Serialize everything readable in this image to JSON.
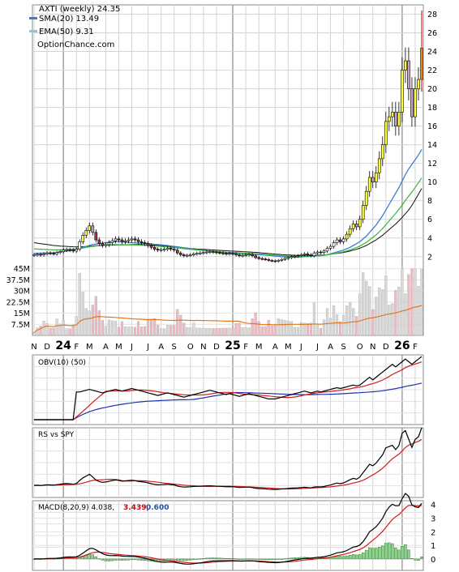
{
  "legend": {
    "title": "AXTI (weekly) 24.35",
    "sma_label": "SMA(20) 13.49",
    "ema_label": "EMA(50) 9.31",
    "source": "OptionChance.com",
    "sma_color": "#3a7fd0",
    "ema_color": "#7ec8e8"
  },
  "x_axis": {
    "ticks": [
      {
        "label": "N",
        "i": 0,
        "bold": false
      },
      {
        "label": "D",
        "i": 4,
        "bold": false
      },
      {
        "label": "24",
        "i": 9,
        "bold": true
      },
      {
        "label": "F",
        "i": 13,
        "bold": false
      },
      {
        "label": "M",
        "i": 17,
        "bold": false
      },
      {
        "label": "A",
        "i": 22,
        "bold": false
      },
      {
        "label": "M",
        "i": 26,
        "bold": false
      },
      {
        "label": "J",
        "i": 30,
        "bold": false
      },
      {
        "label": "J",
        "i": 35,
        "bold": false
      },
      {
        "label": "A",
        "i": 39,
        "bold": false
      },
      {
        "label": "S",
        "i": 43,
        "bold": false
      },
      {
        "label": "O",
        "i": 48,
        "bold": false
      },
      {
        "label": "N",
        "i": 52,
        "bold": false
      },
      {
        "label": "D",
        "i": 56,
        "bold": false
      },
      {
        "label": "25",
        "i": 61,
        "bold": true
      },
      {
        "label": "F",
        "i": 65,
        "bold": false
      },
      {
        "label": "M",
        "i": 69,
        "bold": false
      },
      {
        "label": "A",
        "i": 74,
        "bold": false
      },
      {
        "label": "M",
        "i": 78,
        "bold": false
      },
      {
        "label": "J",
        "i": 82,
        "bold": false
      },
      {
        "label": "J",
        "i": 87,
        "bold": false
      },
      {
        "label": "A",
        "i": 91,
        "bold": false
      },
      {
        "label": "S",
        "i": 95,
        "bold": false
      },
      {
        "label": "O",
        "i": 100,
        "bold": false
      },
      {
        "label": "N",
        "i": 104,
        "bold": false
      },
      {
        "label": "D",
        "i": 108,
        "bold": false
      },
      {
        "label": "26",
        "i": 113,
        "bold": true
      },
      {
        "label": "F",
        "i": 117,
        "bold": false
      }
    ]
  },
  "panels": {
    "obv_label": "OBV(10) (50)",
    "rs_label": "RS vs SPY",
    "macd_label": "MACD(8,20,9) 4.038,",
    "macd_signal": "3.439,",
    "macd_hist": "0.600",
    "macd_signal_color": "#cc0000",
    "macd_hist_color": "#1f4fa8"
  },
  "chart_data": [
    {
      "type": "candlestick",
      "title": "AXTI (weekly) 24.35",
      "ylim": [
        1.2,
        29
      ],
      "yticks": [
        2,
        4,
        6,
        8,
        10,
        12,
        14,
        16,
        18,
        20,
        22,
        24,
        26,
        28
      ],
      "grid": true,
      "legend_position": "top-left",
      "weeks": 120,
      "close": [
        2.2,
        2.25,
        2.18,
        2.3,
        2.4,
        2.35,
        2.3,
        2.45,
        2.55,
        2.7,
        2.75,
        2.7,
        2.6,
        2.8,
        3.6,
        4.3,
        4.8,
        5.3,
        4.6,
        3.8,
        3.4,
        3.2,
        3.3,
        3.5,
        3.7,
        3.9,
        3.8,
        3.6,
        3.7,
        3.8,
        3.9,
        3.8,
        3.6,
        3.5,
        3.4,
        3.2,
        3.0,
        2.8,
        2.7,
        2.75,
        2.8,
        2.9,
        2.8,
        2.7,
        2.4,
        2.2,
        2.1,
        2.15,
        2.2,
        2.3,
        2.35,
        2.4,
        2.45,
        2.5,
        2.55,
        2.5,
        2.45,
        2.4,
        2.35,
        2.3,
        2.35,
        2.3,
        2.2,
        2.1,
        2.15,
        2.2,
        2.25,
        2.1,
        1.9,
        1.8,
        1.75,
        1.7,
        1.6,
        1.55,
        1.5,
        1.6,
        1.7,
        1.8,
        1.9,
        2.0,
        2.05,
        2.1,
        2.2,
        2.3,
        2.2,
        2.1,
        2.4,
        2.5,
        2.45,
        2.6,
        2.9,
        3.1,
        3.5,
        3.8,
        3.6,
        3.9,
        4.4,
        5.0,
        5.5,
        5.2,
        6.0,
        7.5,
        9.0,
        10.5,
        10.0,
        11.0,
        12.5,
        14.0,
        16.5,
        17.0,
        17.5,
        16.0,
        17.5,
        22.0,
        23.0,
        20.0,
        17.0,
        20.0,
        21.0,
        24.35
      ],
      "sma20": [
        2.35,
        2.36,
        2.37,
        2.38,
        2.39,
        2.4,
        2.42,
        2.45,
        2.5,
        2.55,
        2.6,
        2.66,
        2.72,
        2.8,
        2.9,
        3.0,
        3.1,
        3.2,
        3.3,
        3.35,
        3.4,
        3.45,
        3.5,
        3.55,
        3.6,
        3.62,
        3.6,
        3.58,
        3.55,
        3.52,
        3.5,
        3.48,
        3.46,
        3.44,
        3.42,
        3.4,
        3.37,
        3.33,
        3.3,
        3.27,
        3.23,
        3.2,
        3.15,
        3.1,
        3.05,
        3.0,
        2.95,
        2.9,
        2.85,
        2.8,
        2.76,
        2.72,
        2.68,
        2.64,
        2.6,
        2.56,
        2.52,
        2.48,
        2.45,
        2.42,
        2.4,
        2.38,
        2.36,
        2.34,
        2.32,
        2.3,
        2.28,
        2.26,
        2.24,
        2.22,
        2.2,
        2.17,
        2.14,
        2.1,
        2.06,
        2.03,
        2.0,
        1.98,
        1.96,
        1.95,
        1.95,
        1.96,
        1.98,
        2.0,
        2.02,
        2.04,
        2.06,
        2.08,
        2.1,
        2.15,
        2.2,
        2.3,
        2.4,
        2.5,
        2.6,
        2.7,
        2.85,
        3.0,
        3.2,
        3.4,
        3.6,
        3.9,
        4.2,
        4.6,
        5.0,
        5.4,
        5.9,
        6.4,
        7.0,
        7.6,
        8.2,
        8.8,
        9.4,
        10.1,
        10.8,
        11.4,
        11.9,
        12.4,
        12.9,
        13.49
      ],
      "ema50": [
        3.5,
        3.45,
        3.4,
        3.35,
        3.3,
        3.25,
        3.2,
        3.17,
        3.14,
        3.12,
        3.1,
        3.08,
        3.06,
        3.05,
        3.06,
        3.07,
        3.1,
        3.13,
        3.15,
        3.17,
        3.18,
        3.2,
        3.21,
        3.22,
        3.23,
        3.25,
        3.26,
        3.27,
        3.28,
        3.28,
        3.29,
        3.29,
        3.3,
        3.29,
        3.28,
        3.27,
        3.25,
        3.23,
        3.2,
        3.18,
        3.15,
        3.12,
        3.1,
        3.07,
        3.04,
        3.0,
        2.96,
        2.92,
        2.88,
        2.85,
        2.82,
        2.8,
        2.78,
        2.76,
        2.74,
        2.72,
        2.7,
        2.68,
        2.66,
        2.64,
        2.62,
        2.6,
        2.58,
        2.56,
        2.54,
        2.52,
        2.5,
        2.48,
        2.46,
        2.43,
        2.4,
        2.37,
        2.34,
        2.31,
        2.28,
        2.25,
        2.22,
        2.2,
        2.18,
        2.16,
        2.15,
        2.14,
        2.14,
        2.14,
        2.14,
        2.14,
        2.15,
        2.16,
        2.17,
        2.19,
        2.22,
        2.25,
        2.3,
        2.35,
        2.4,
        2.45,
        2.52,
        2.6,
        2.7,
        2.8,
        2.9,
        3.05,
        3.2,
        3.4,
        3.6,
        3.8,
        4.05,
        4.3,
        4.6,
        4.9,
        5.2,
        5.5,
        5.85,
        6.2,
        6.6,
        7.0,
        7.5,
        8.1,
        8.7,
        9.31
      ],
      "volume": {
        "yticks": [
          7.5,
          15,
          22.5,
          30,
          37.5,
          45
        ],
        "ytick_labels": [
          "7.5M",
          "15M",
          "22.5M",
          "30M",
          "37.5M",
          "45M"
        ],
        "ylim": [
          0,
          47
        ],
        "avg_color": "#e07820"
      }
    },
    {
      "type": "line",
      "title": "OBV(10) (50)"
    },
    {
      "type": "line",
      "title": "RS vs SPY"
    },
    {
      "type": "line+bar",
      "title": "MACD(8,20,9)",
      "ylim": [
        -0.6,
        4.4
      ],
      "yticks": [
        0,
        1,
        2,
        3,
        4
      ]
    }
  ]
}
